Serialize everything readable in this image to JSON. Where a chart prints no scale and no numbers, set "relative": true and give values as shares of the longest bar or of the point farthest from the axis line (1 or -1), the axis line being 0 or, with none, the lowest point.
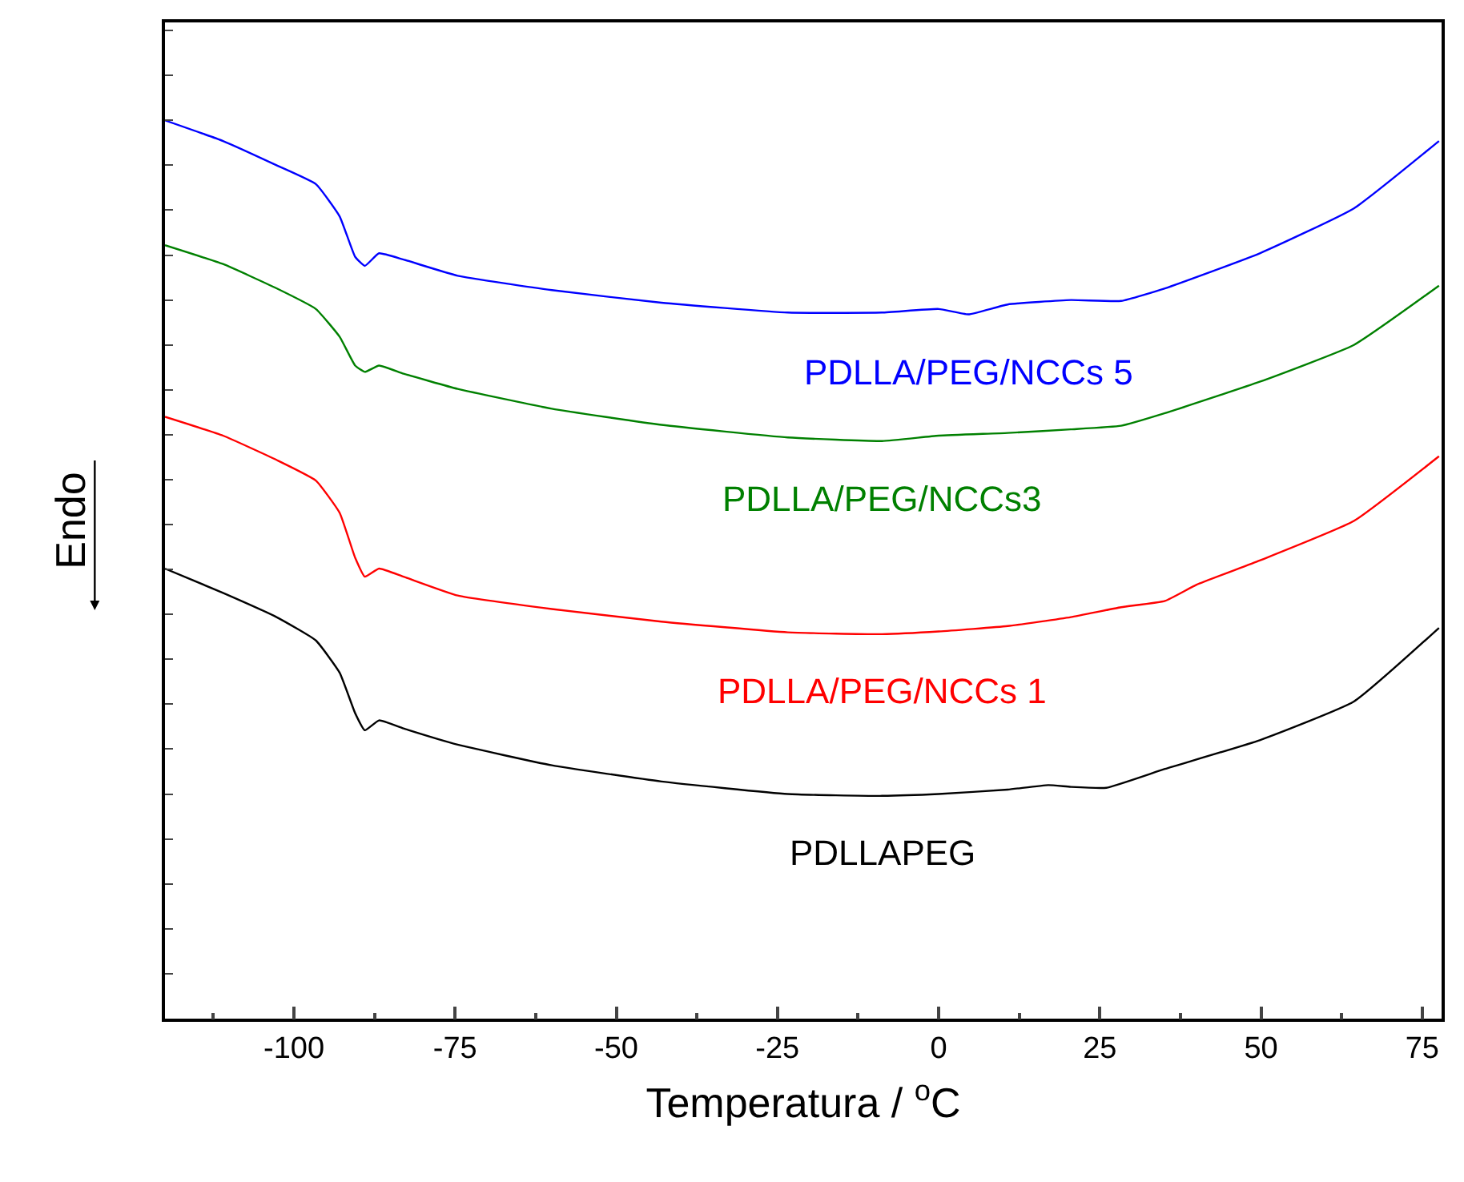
{
  "chart_data": {
    "type": "line",
    "relative": true,
    "xlabel": "Temperatura / $^{o}$C",
    "ylabel": "Endo",
    "xlim": [
      -120,
      78
    ],
    "xticks": [
      -100,
      -75,
      -50,
      -25,
      0,
      25,
      50,
      75
    ],
    "legend": false,
    "marker": "none",
    "line_style": "solid",
    "tick_labels": "x",
    "series": [
      {
        "name": "PDLLA/PEG/NCCs 5",
        "color": "#0000ff",
        "x": [
          -120,
          -111,
          -102.7,
          -96.6,
          -92.9,
          -90.5,
          -89,
          -86.8,
          -83,
          -74.6,
          -60,
          -43,
          -23.4,
          -8.8,
          0,
          4.6,
          10.7,
          20.5,
          28.3,
          35.1,
          49.8,
          64.4,
          77.6
        ],
        "values": [
          1.0,
          0.977,
          0.95,
          0.929,
          0.893,
          0.848,
          0.838,
          0.852,
          0.845,
          0.827,
          0.811,
          0.797,
          0.786,
          0.786,
          0.79,
          0.784,
          0.795,
          0.8,
          0.799,
          0.813,
          0.852,
          0.902,
          0.977
        ]
      },
      {
        "name": "PDLLA/PEG/NCCs3",
        "color": "#008000",
        "x": [
          -120,
          -111,
          -102.7,
          -96.6,
          -92.9,
          -90.5,
          -89,
          -86.8,
          -83,
          -74.6,
          -60,
          -43,
          -23.4,
          -8.8,
          0,
          10.7,
          20.5,
          28.3,
          35.1,
          49.8,
          64.4,
          77.6
        ],
        "values": [
          0.861,
          0.84,
          0.813,
          0.79,
          0.759,
          0.727,
          0.72,
          0.727,
          0.718,
          0.701,
          0.679,
          0.661,
          0.647,
          0.643,
          0.649,
          0.652,
          0.656,
          0.66,
          0.674,
          0.709,
          0.75,
          0.816
        ]
      },
      {
        "name": "PDLLA/PEG/NCCs 1",
        "color": "#ff0000",
        "x": [
          -120,
          -111,
          -102.7,
          -96.6,
          -92.9,
          -90.5,
          -89,
          -86.8,
          -83,
          -74.6,
          -60,
          -43,
          -23.4,
          -8.8,
          0,
          10.7,
          20.5,
          28.3,
          35.1,
          40,
          49.8,
          64.4,
          77.6
        ],
        "values": [
          0.67,
          0.649,
          0.622,
          0.599,
          0.563,
          0.513,
          0.492,
          0.501,
          0.492,
          0.471,
          0.456,
          0.442,
          0.43,
          0.428,
          0.431,
          0.437,
          0.447,
          0.458,
          0.465,
          0.483,
          0.51,
          0.554,
          0.626
        ]
      },
      {
        "name": "PDLLAPEG",
        "color": "#000000",
        "x": [
          -120,
          -111,
          -102.7,
          -96.6,
          -92.9,
          -90.5,
          -89,
          -86.8,
          -83,
          -74.6,
          -60,
          -43,
          -23.4,
          -8.8,
          0,
          10.7,
          17,
          20.5,
          26,
          35.1,
          49.8,
          64.4,
          77.6
        ],
        "values": [
          0.501,
          0.474,
          0.447,
          0.421,
          0.385,
          0.34,
          0.321,
          0.332,
          0.323,
          0.305,
          0.282,
          0.264,
          0.25,
          0.248,
          0.25,
          0.255,
          0.26,
          0.258,
          0.257,
          0.278,
          0.31,
          0.353,
          0.435
        ]
      }
    ]
  }
}
